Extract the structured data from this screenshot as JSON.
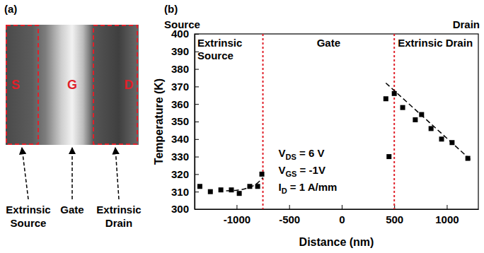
{
  "figure_a": {
    "letter": "(a)",
    "letters": [
      "S",
      "G",
      "D"
    ],
    "labels": [
      "Extrinsic Source",
      "Gate",
      "Extrinsic Drain"
    ]
  },
  "chart_data": {
    "type": "scatter",
    "letter": "(b)",
    "x_label": "Distance (nm)",
    "y_label": "Temperature (K)",
    "top_labels": [
      "Source",
      "Drain"
    ],
    "region_labels": [
      "Extrinsic Source",
      "Gate",
      "Extrinsic Drain"
    ],
    "region_boundaries": {
      "values": [
        -750,
        500
      ],
      "color": "#e0202a",
      "line_style": "dotted"
    },
    "annotations": [
      {
        "text": "V",
        "sub": "DS",
        "tail": " = 6 V"
      },
      {
        "text": "V",
        "sub": "GS",
        "tail": " = -1V"
      },
      {
        "text": "I",
        "sub": "D",
        "tail": " = 1 A/mm"
      }
    ],
    "xlim": [
      -1400,
      1300
    ],
    "xticks": [
      -1000,
      -500,
      0,
      500,
      1000
    ],
    "ylim": [
      300,
      400
    ],
    "yticks": [
      300,
      310,
      320,
      330,
      340,
      350,
      360,
      370,
      380,
      390,
      400
    ],
    "grid": false,
    "series": [
      {
        "color": "#000000",
        "marker": "square",
        "x": [
          -1350,
          -1250,
          -1150,
          -1050,
          -975,
          -875,
          -800,
          -760,
          420,
          450,
          500,
          580,
          700,
          760,
          850,
          950,
          1050,
          1200
        ],
        "values": [
          313,
          310,
          311,
          311,
          309,
          313,
          313,
          320,
          363,
          330,
          366,
          358,
          351,
          354,
          346,
          340,
          338,
          329
        ]
      }
    ],
    "fits": [
      {
        "color": "#000000",
        "line_style": "dashed",
        "x": [
          -1100,
          -1000,
          -900,
          -800,
          -750
        ],
        "values": [
          310.5,
          310.8,
          312,
          315,
          318
        ]
      },
      {
        "color": "#000000",
        "line_style": "dashed",
        "x": [
          420,
          1230
        ],
        "values": [
          372,
          328
        ]
      }
    ]
  }
}
